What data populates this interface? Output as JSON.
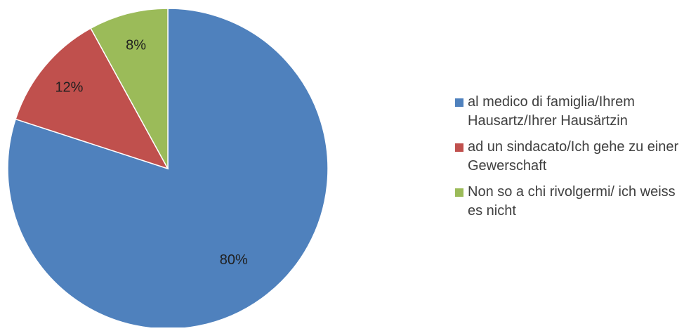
{
  "chart_data": {
    "type": "pie",
    "title": "",
    "start_angle_deg": 0,
    "direction": "clockwise",
    "slices": [
      {
        "label": "al medico di famiglia/Ihrem Hausartz/Ihrer Hausärtzin",
        "value": 80,
        "display": "80%",
        "color": "#4f81bd"
      },
      {
        "label": "ad un sindacato/Ich gehe zu einer Gewerschaft",
        "value": 12,
        "display": "12%",
        "color": "#c0504d"
      },
      {
        "label": "Non so a chi rivolgermi/ ich weiss es nicht",
        "value": 8,
        "display": "8%",
        "color": "#9bbb59"
      }
    ],
    "legend_position": "right"
  }
}
